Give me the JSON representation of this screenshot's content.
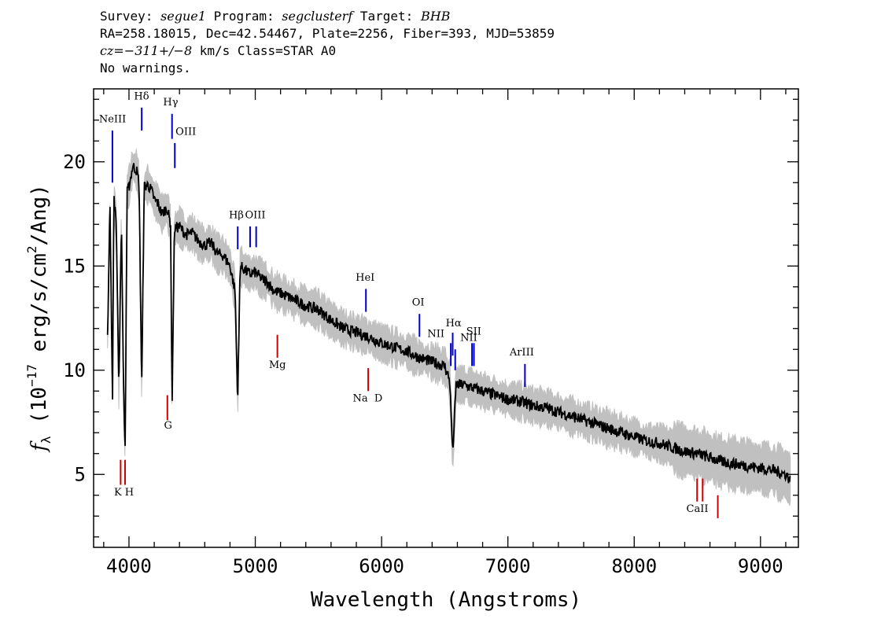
{
  "header": {
    "line1": {
      "survey_label": "Survey: ",
      "survey": "segue1",
      "program_label": " Program: ",
      "program": "segclusterf",
      "target_label": " Target: ",
      "target": "BHB"
    },
    "line2": "RA=258.18015, Dec=42.54467, Plate=2256, Fiber=393, MJD=53859",
    "line3": {
      "cz": "cz=−311+/−8",
      "rest": " km/s Class=STAR A0"
    },
    "line4": "No warnings."
  },
  "chart_data": {
    "type": "line",
    "xlabel": "Wavelength (Angstroms)",
    "ylabel": "f_λ (10^-17 erg/s/cm^2/Ang)",
    "xlim": [
      3720,
      9300
    ],
    "ylim": [
      1.5,
      23.5
    ],
    "xticks": [
      4000,
      5000,
      6000,
      7000,
      8000,
      9000
    ],
    "yticks": [
      5,
      10,
      15,
      20
    ],
    "grid": false,
    "series": [
      {
        "role": "flux",
        "color": "#000000",
        "x": [
          3830,
          3850,
          3870,
          3880,
          3900,
          3920,
          3940,
          3960,
          3970,
          3985,
          4000,
          4030,
          4060,
          4080,
          4101,
          4120,
          4150,
          4180,
          4200,
          4230,
          4260,
          4300,
          4330,
          4341,
          4360,
          4400,
          4450,
          4500,
          4550,
          4600,
          4650,
          4700,
          4750,
          4800,
          4840,
          4861,
          4880,
          4920,
          4960,
          5000,
          5050,
          5100,
          5150,
          5200,
          5300,
          5400,
          5500,
          5600,
          5700,
          5800,
          5900,
          6000,
          6100,
          6200,
          6300,
          6400,
          6450,
          6500,
          6540,
          6563,
          6590,
          6650,
          6700,
          6800,
          6900,
          7000,
          7100,
          7200,
          7300,
          7400,
          7500,
          7600,
          7700,
          7800,
          7900,
          8000,
          8100,
          8200,
          8300,
          8400,
          8500,
          8600,
          8700,
          8800,
          8900,
          9000,
          9100,
          9200,
          9240
        ],
        "y": [
          11.5,
          18.0,
          8.5,
          18.3,
          17.0,
          9.0,
          17.2,
          8.0,
          6.3,
          18.5,
          18.8,
          19.8,
          19.6,
          19.0,
          9.0,
          18.8,
          18.9,
          18.6,
          18.2,
          18.0,
          17.5,
          17.8,
          17.0,
          8.3,
          16.8,
          16.9,
          16.5,
          16.6,
          16.2,
          16.0,
          16.1,
          15.6,
          15.5,
          15.0,
          13.8,
          8.5,
          15.0,
          14.8,
          14.6,
          14.7,
          14.4,
          14.2,
          13.8,
          13.7,
          13.4,
          13.1,
          12.9,
          12.4,
          12.0,
          11.8,
          11.6,
          11.3,
          11.1,
          10.9,
          10.6,
          10.4,
          10.3,
          10.2,
          9.5,
          6.0,
          9.3,
          9.3,
          9.2,
          9.0,
          8.8,
          8.6,
          8.5,
          8.3,
          8.2,
          8.0,
          7.8,
          7.6,
          7.4,
          7.2,
          7.0,
          6.8,
          6.6,
          6.5,
          6.3,
          6.1,
          6.0,
          5.8,
          5.6,
          5.5,
          5.4,
          5.3,
          5.2,
          5.0,
          4.7
        ]
      }
    ],
    "band": {
      "role": "noise",
      "color": "#c0c0c0"
    },
    "lines_emission": [
      {
        "label": "NeIII",
        "x": 3869,
        "y0": 19.0,
        "y1": 21.5,
        "color": "#0000cc"
      },
      {
        "label": "Hδ",
        "x": 4101,
        "y0": 21.5,
        "y1": 22.6,
        "color": "#0000cc"
      },
      {
        "label": "Hγ",
        "x": 4341,
        "y0": 21.1,
        "y1": 22.3,
        "color": "#0000cc"
      },
      {
        "label": "OIII",
        "x": 4363,
        "y0": 19.7,
        "y1": 20.9,
        "color": "#0000cc"
      },
      {
        "label": "Hβ",
        "x": 4861,
        "y0": 15.8,
        "y1": 16.9,
        "color": "#0000cc"
      },
      {
        "label": "OIII",
        "x": 4959,
        "y0": 15.9,
        "y1": 16.9,
        "color": "#0000cc"
      },
      {
        "label": "",
        "x": 5007,
        "y0": 15.9,
        "y1": 16.9,
        "color": "#0000cc"
      },
      {
        "label": "HeI",
        "x": 5876,
        "y0": 12.8,
        "y1": 13.9,
        "color": "#0000cc"
      },
      {
        "label": "OI",
        "x": 6300,
        "y0": 11.6,
        "y1": 12.7,
        "color": "#0000cc"
      },
      {
        "label": "NII",
        "x": 6548,
        "y0": 10.2,
        "y1": 11.3,
        "color": "#0000cc"
      },
      {
        "label": "Hα",
        "x": 6563,
        "y0": 10.7,
        "y1": 11.8,
        "color": "#0000cc"
      },
      {
        "label": "NII",
        "x": 6583,
        "y0": 10.0,
        "y1": 11.0,
        "color": "#0000cc"
      },
      {
        "label": "SII",
        "x": 6716,
        "y0": 10.2,
        "y1": 11.3,
        "color": "#0000cc"
      },
      {
        "label": "",
        "x": 6731,
        "y0": 10.2,
        "y1": 11.3,
        "color": "#0000cc"
      },
      {
        "label": "ArIII",
        "x": 7135,
        "y0": 9.2,
        "y1": 10.3,
        "color": "#0000cc"
      }
    ],
    "lines_absorption": [
      {
        "label": "K",
        "x": 3934,
        "y0": 4.5,
        "y1": 5.7,
        "color": "#cc0000"
      },
      {
        "label": "H",
        "x": 3969,
        "y0": 4.5,
        "y1": 5.7,
        "color": "#cc0000"
      },
      {
        "label": "G",
        "x": 4304,
        "y0": 7.6,
        "y1": 8.8,
        "color": "#cc0000"
      },
      {
        "label": "Mg",
        "x": 5175,
        "y0": 10.6,
        "y1": 11.7,
        "color": "#cc0000"
      },
      {
        "label": "Na D",
        "x": 5894,
        "y0": 9.0,
        "y1": 10.1,
        "color": "#cc0000"
      },
      {
        "label": "CaII",
        "x": 8498,
        "y0": 3.7,
        "y1": 4.8,
        "color": "#cc0000"
      },
      {
        "label": "",
        "x": 8542,
        "y0": 3.7,
        "y1": 4.8,
        "color": "#cc0000"
      },
      {
        "label": "",
        "x": 8662,
        "y0": 2.9,
        "y1": 4.0,
        "color": "#cc0000"
      }
    ],
    "line_labels": [
      {
        "text": "NeIII",
        "x": 3870,
        "y": 21.9
      },
      {
        "text": "Hδ",
        "x": 4100,
        "y": 23.0
      },
      {
        "text": "Hγ",
        "x": 4330,
        "y": 22.7
      },
      {
        "text": "OIII",
        "x": 4450,
        "y": 21.3
      },
      {
        "text": "Hβ",
        "x": 4850,
        "y": 17.3
      },
      {
        "text": "OIII",
        "x": 5000,
        "y": 17.3
      },
      {
        "text": "HeI",
        "x": 5870,
        "y": 14.3
      },
      {
        "text": "OI",
        "x": 6290,
        "y": 13.1
      },
      {
        "text": "NII",
        "x": 6430,
        "y": 11.6
      },
      {
        "text": "Hα",
        "x": 6570,
        "y": 12.1
      },
      {
        "text": "NII",
        "x": 6690,
        "y": 11.4
      },
      {
        "text": "SII",
        "x": 6730,
        "y": 11.7
      },
      {
        "text": "ArIII",
        "x": 7110,
        "y": 10.7
      },
      {
        "text": "K H",
        "x": 3960,
        "y": 4.0
      },
      {
        "text": "G",
        "x": 4310,
        "y": 7.2
      },
      {
        "text": "Mg",
        "x": 5175,
        "y": 10.1
      },
      {
        "text": "Na  D",
        "x": 5890,
        "y": 8.5
      },
      {
        "text": "CaII",
        "x": 8500,
        "y": 3.2
      }
    ]
  }
}
